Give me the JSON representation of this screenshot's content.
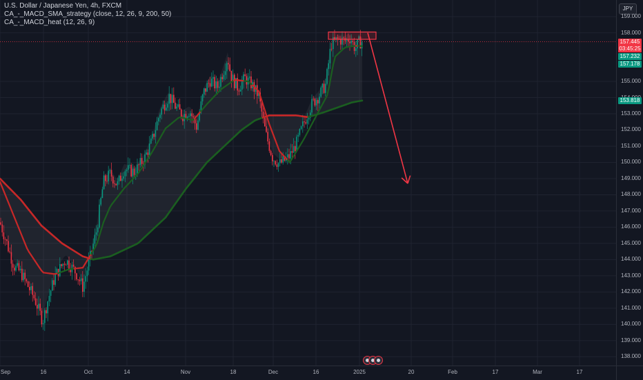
{
  "symbol": {
    "title": "U.S. Dollar / Japanese Yen, 4h, FXCM",
    "indicator_1": "CA_-_MACD_SMA_strategy (close, 12, 26, 9, 200, 50)",
    "indicator_2": "CA_-_MACD_heat (12, 26, 9)",
    "currency": "JPY"
  },
  "price_axis": {
    "ticks": [
      {
        "value": 159,
        "label": "159.000"
      },
      {
        "value": 158,
        "label": "158.000"
      },
      {
        "value": 155,
        "label": "155.000"
      },
      {
        "value": 154,
        "label": "154.000"
      },
      {
        "value": 153,
        "label": "153.000"
      },
      {
        "value": 152,
        "label": "152.000"
      },
      {
        "value": 151,
        "label": "151.000"
      },
      {
        "value": 150,
        "label": "150.000"
      },
      {
        "value": 149,
        "label": "149.000"
      },
      {
        "value": 148,
        "label": "148.000"
      },
      {
        "value": 147,
        "label": "147.000"
      },
      {
        "value": 146,
        "label": "146.000"
      },
      {
        "value": 145,
        "label": "145.000"
      },
      {
        "value": 144,
        "label": "144.000"
      },
      {
        "value": 143,
        "label": "143.000"
      },
      {
        "value": 142,
        "label": "142.000"
      },
      {
        "value": 141,
        "label": "141.000"
      },
      {
        "value": 140,
        "label": "140.000"
      },
      {
        "value": 139,
        "label": "139.000"
      },
      {
        "value": 138,
        "label": "138.000"
      }
    ],
    "badges": [
      {
        "name": "last-price",
        "value": 157.445,
        "label": "157.445",
        "sub": "03:45:25",
        "color": "#f23645"
      },
      {
        "name": "ma50-value",
        "value": 157.232,
        "label": "157.232",
        "color": "#089981"
      },
      {
        "name": "ma-fast-value",
        "value": 157.178,
        "label": "157.178",
        "color": "#089981"
      },
      {
        "name": "ma200-value",
        "value": 153.818,
        "label": "153.818",
        "color": "#089981"
      }
    ]
  },
  "time_axis": {
    "labels": [
      {
        "label": "Sep",
        "slot": 0
      },
      {
        "label": "16",
        "slot": 63
      },
      {
        "label": "Oct",
        "slot": 128
      },
      {
        "label": "14",
        "slot": 184
      },
      {
        "label": "Nov",
        "slot": 269
      },
      {
        "label": "18",
        "slot": 338
      },
      {
        "label": "Dec",
        "slot": 396
      },
      {
        "label": "16",
        "slot": 458
      },
      {
        "label": "2025",
        "slot": 521
      },
      {
        "label": "20",
        "slot": 596
      },
      {
        "label": "Feb",
        "slot": 656
      },
      {
        "label": "17",
        "slot": 718
      },
      {
        "label": "Mar",
        "slot": 779
      },
      {
        "label": "17",
        "slot": 840
      }
    ]
  },
  "colors": {
    "background": "#131722",
    "up": "#089981",
    "down": "#f23645",
    "ma_red": "#c62828",
    "ma_green": "#1b5e20",
    "arrow": "#f23645"
  },
  "chart_data": {
    "type": "candlestick",
    "ylim": [
      137.8,
      159.6
    ],
    "price_path": [
      [
        0,
        146.3
      ],
      [
        10,
        145.0
      ],
      [
        20,
        143.6
      ],
      [
        30,
        143.2
      ],
      [
        40,
        142.4
      ],
      [
        50,
        141.6
      ],
      [
        62,
        140.2
      ],
      [
        70,
        141.6
      ],
      [
        80,
        143.0
      ],
      [
        95,
        144.0
      ],
      [
        110,
        143.2
      ],
      [
        120,
        142.3
      ],
      [
        130,
        144.0
      ],
      [
        140,
        145.8
      ],
      [
        150,
        148.8
      ],
      [
        160,
        149.3
      ],
      [
        170,
        148.6
      ],
      [
        180,
        149.6
      ],
      [
        195,
        149.4
      ],
      [
        210,
        150.3
      ],
      [
        220,
        151.3
      ],
      [
        232,
        153.1
      ],
      [
        245,
        154.1
      ],
      [
        255,
        153.4
      ],
      [
        265,
        152.9
      ],
      [
        275,
        153.2
      ],
      [
        285,
        152.2
      ],
      [
        295,
        154.3
      ],
      [
        305,
        155.1
      ],
      [
        315,
        154.6
      ],
      [
        325,
        155.8
      ],
      [
        330,
        156.5
      ],
      [
        335,
        155.3
      ],
      [
        345,
        154.6
      ],
      [
        355,
        155.2
      ],
      [
        365,
        154.8
      ],
      [
        375,
        154.1
      ],
      [
        385,
        151.8
      ],
      [
        395,
        150.3
      ],
      [
        405,
        149.9
      ],
      [
        412,
        150.1
      ],
      [
        420,
        150.4
      ],
      [
        430,
        151.2
      ],
      [
        440,
        152.4
      ],
      [
        452,
        153.6
      ],
      [
        462,
        154.1
      ],
      [
        472,
        154.8
      ],
      [
        480,
        157.3
      ],
      [
        490,
        157.6
      ],
      [
        500,
        157.5
      ],
      [
        508,
        157.7
      ],
      [
        515,
        157.0
      ],
      [
        520,
        157.4
      ],
      [
        525,
        157.445
      ]
    ],
    "ma_fast": [
      [
        0,
        148.8
      ],
      [
        20,
        146.7
      ],
      [
        40,
        144.6
      ],
      [
        62,
        143.2
      ],
      [
        80,
        143.1
      ],
      [
        100,
        143.4
      ],
      [
        120,
        143.5
      ],
      [
        130,
        144.2
      ],
      [
        140,
        144.9
      ],
      [
        150,
        146.3
      ],
      [
        160,
        147.3
      ],
      [
        180,
        148.4
      ],
      [
        200,
        149.3
      ],
      [
        220,
        150.6
      ],
      [
        240,
        152.1
      ],
      [
        260,
        152.8
      ],
      [
        280,
        152.6
      ],
      [
        300,
        153.6
      ],
      [
        320,
        154.5
      ],
      [
        340,
        155.1
      ],
      [
        360,
        155.0
      ],
      [
        375,
        154.4
      ],
      [
        390,
        152.4
      ],
      [
        405,
        150.7
      ],
      [
        420,
        150.0
      ],
      [
        440,
        151.4
      ],
      [
        460,
        153.0
      ],
      [
        475,
        154.2
      ],
      [
        485,
        156.5
      ],
      [
        500,
        157.1
      ],
      [
        515,
        157.2
      ],
      [
        525,
        157.178
      ]
    ],
    "ma_slow": [
      [
        0,
        149.0
      ],
      [
        30,
        147.7
      ],
      [
        60,
        146.1
      ],
      [
        90,
        145.0
      ],
      [
        120,
        144.2
      ],
      [
        135,
        144.0
      ],
      [
        160,
        144.2
      ],
      [
        200,
        145.0
      ],
      [
        240,
        146.6
      ],
      [
        270,
        148.4
      ],
      [
        300,
        150.0
      ],
      [
        330,
        151.2
      ],
      [
        350,
        152.0
      ],
      [
        370,
        152.6
      ],
      [
        390,
        152.9
      ],
      [
        410,
        152.9
      ],
      [
        430,
        152.9
      ],
      [
        445,
        152.8
      ],
      [
        455,
        152.9
      ],
      [
        470,
        153.1
      ],
      [
        490,
        153.4
      ],
      [
        510,
        153.7
      ],
      [
        525,
        153.818
      ]
    ],
    "resistance_box": {
      "x_start": 476,
      "x_end": 545,
      "price_top": 158.05,
      "price_bottom": 157.6
    },
    "forecast_arrow": {
      "from": [
        533,
        158.0
      ],
      "to": [
        591,
        148.7
      ]
    },
    "last_price": 157.445
  }
}
